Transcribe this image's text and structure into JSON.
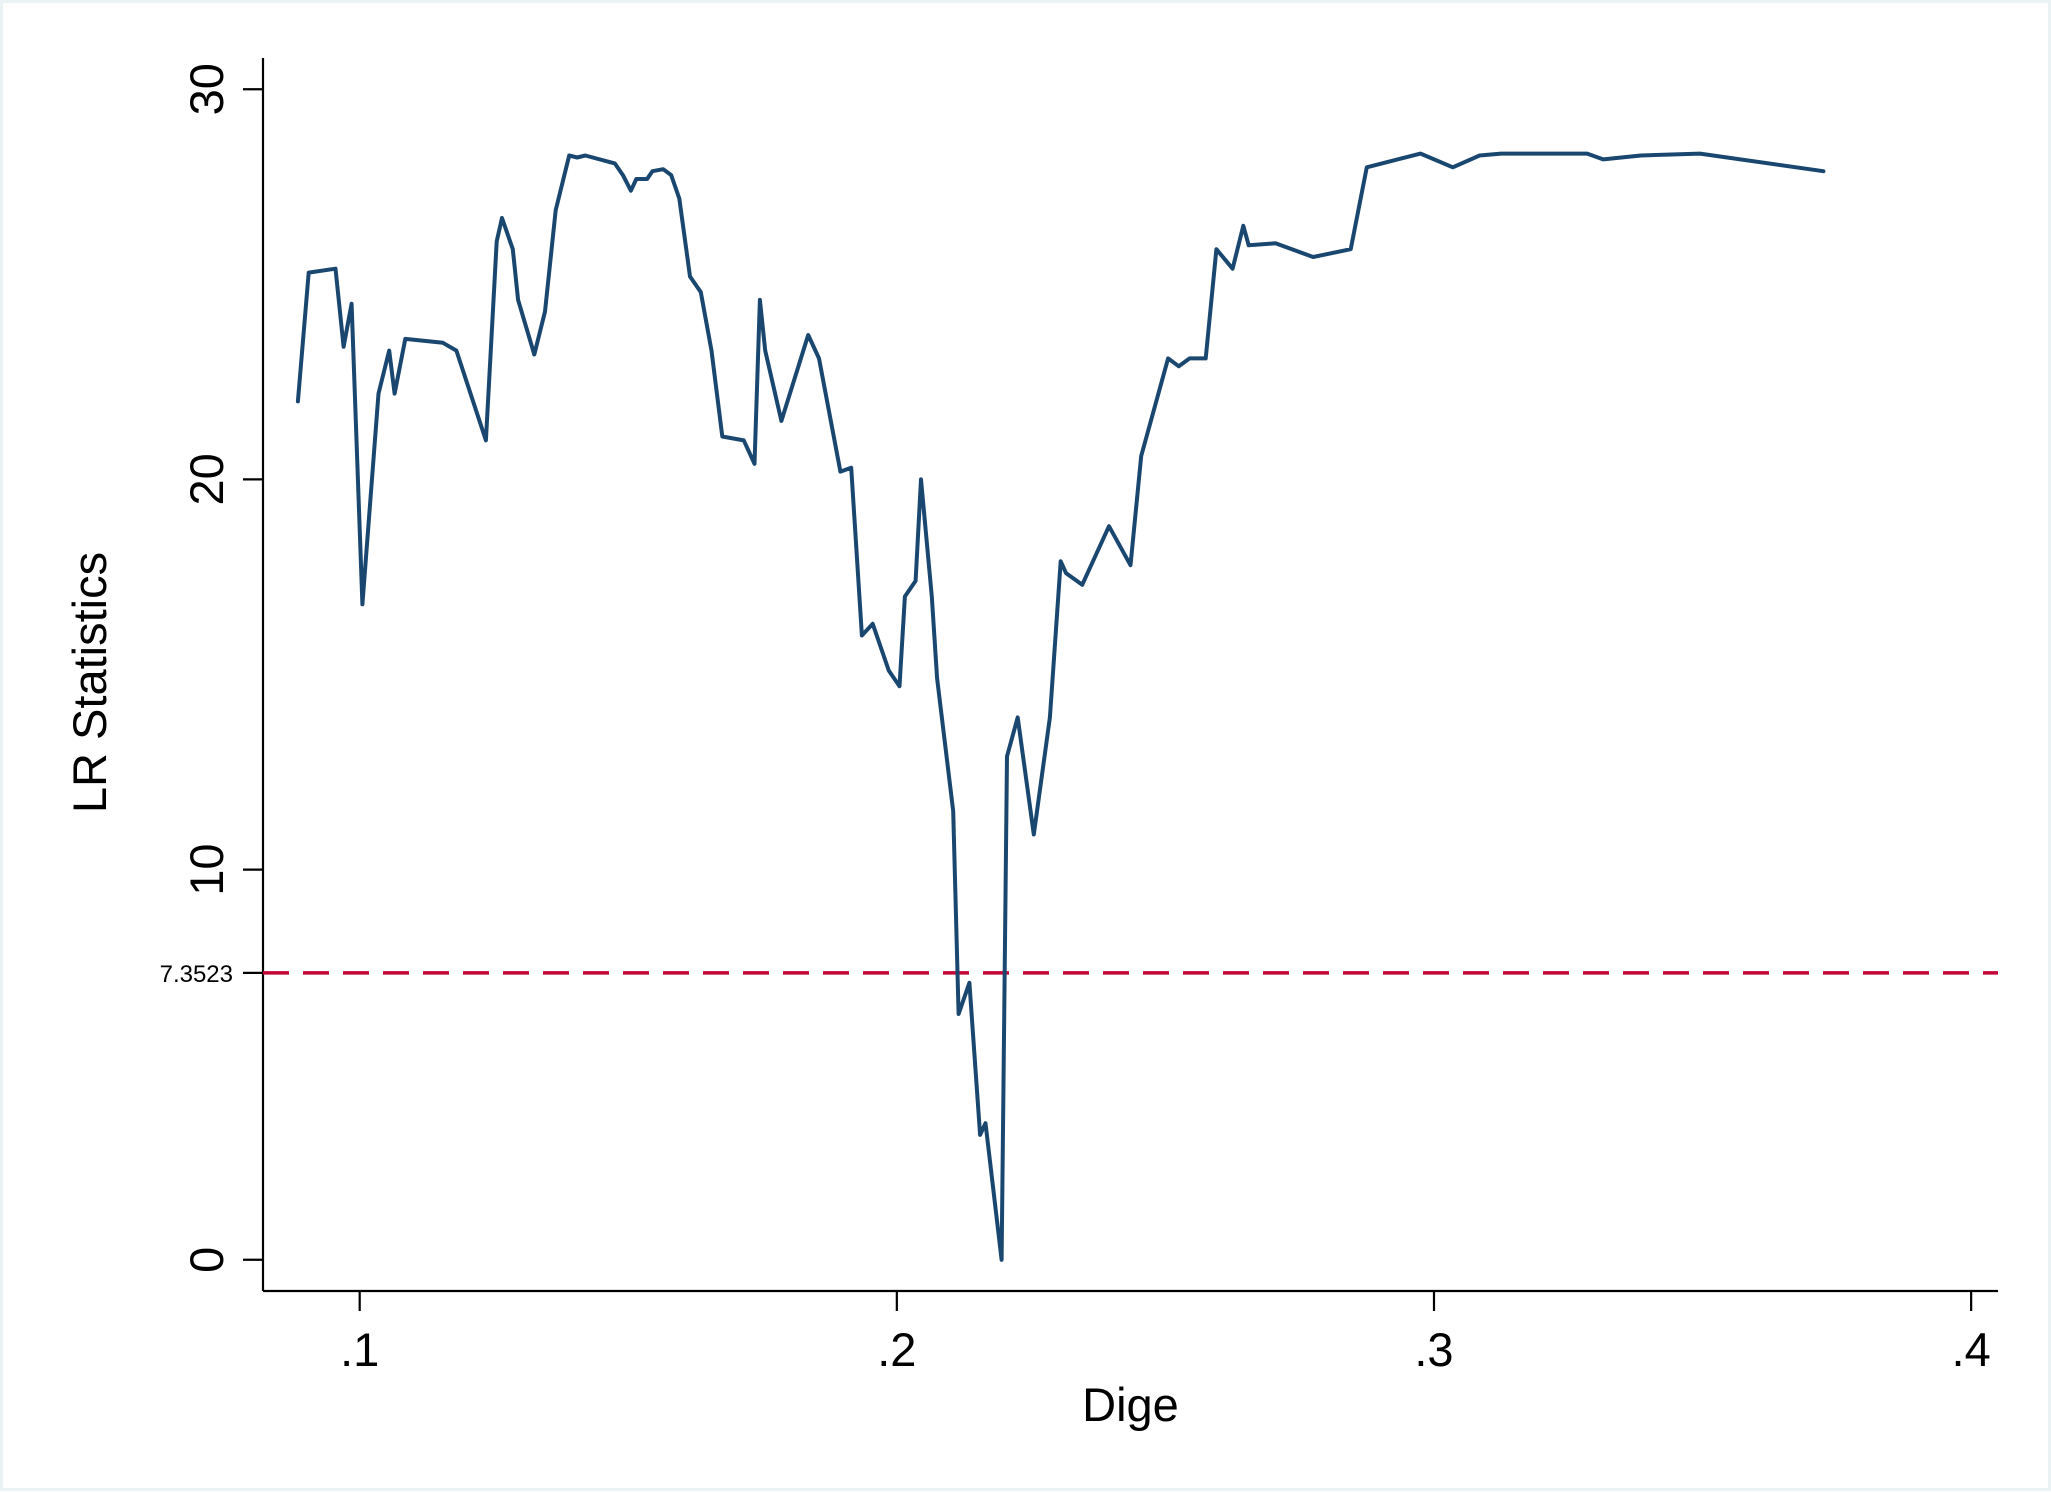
{
  "colors": {
    "series": "#1a476f",
    "reference": "#c10534",
    "axis": "#000000",
    "frame": "#eaf2f3"
  },
  "chart_data": {
    "type": "line",
    "title": "",
    "xlabel": "Dige",
    "ylabel": "LR Statistics",
    "xlim": [
      0.082,
      0.405
    ],
    "ylim": [
      -0.8,
      30.8
    ],
    "xticks": [
      0.1,
      0.2,
      0.3,
      0.4
    ],
    "xtick_labels": [
      ".1",
      ".2",
      ".3",
      ".4"
    ],
    "yticks": [
      0,
      10,
      20,
      30
    ],
    "ytick_labels": [
      "0",
      "10",
      "20",
      "30"
    ],
    "grid": false,
    "legend": "none",
    "reference_line": {
      "y": 7.3523,
      "label": "7.3523",
      "style": "dashed"
    },
    "series": [
      {
        "x": [
          0.0885,
          0.0905,
          0.0955,
          0.097,
          0.0985,
          0.1005,
          0.1035,
          0.1055,
          0.1065,
          0.1085,
          0.1155,
          0.118,
          0.1235,
          0.1255,
          0.1265,
          0.1285,
          0.1295,
          0.1325,
          0.1345,
          0.1365,
          0.139,
          0.1405,
          0.142,
          0.1475,
          0.149,
          0.1505,
          0.1515,
          0.1535,
          0.1545,
          0.1565,
          0.158,
          0.1595,
          0.1615,
          0.1635,
          0.1655,
          0.1675,
          0.1715,
          0.1735,
          0.1745,
          0.1755,
          0.1785,
          0.1835,
          0.1855,
          0.1895,
          0.1915,
          0.1935,
          0.1955,
          0.1985,
          0.2005,
          0.2015,
          0.2035,
          0.2045,
          0.2065,
          0.2075,
          0.2105,
          0.2115,
          0.2135,
          0.2155,
          0.2165,
          0.2195,
          0.2205,
          0.2225,
          0.2255,
          0.2285,
          0.2305,
          0.2315,
          0.2345,
          0.2395,
          0.2435,
          0.2455,
          0.2505,
          0.2525,
          0.2545,
          0.2575,
          0.2595,
          0.2625,
          0.2645,
          0.2655,
          0.2705,
          0.2775,
          0.2845,
          0.2875,
          0.2975,
          0.3035,
          0.3085,
          0.3125,
          0.3285,
          0.3315,
          0.3385,
          0.3495,
          0.3725
        ],
        "y": [
          22.0,
          25.3,
          25.4,
          23.4,
          24.5,
          16.8,
          22.2,
          23.3,
          22.2,
          23.6,
          23.5,
          23.3,
          21.0,
          26.1,
          26.7,
          25.9,
          24.6,
          23.2,
          24.3,
          26.9,
          28.3,
          28.25,
          28.3,
          28.1,
          27.8,
          27.4,
          27.7,
          27.7,
          27.9,
          27.95,
          27.8,
          27.2,
          25.2,
          24.8,
          23.3,
          21.1,
          21.0,
          20.4,
          24.6,
          23.3,
          21.5,
          23.7,
          23.1,
          20.2,
          20.3,
          16.0,
          16.3,
          15.1,
          14.7,
          17.0,
          17.4,
          20.0,
          17.0,
          14.9,
          11.5,
          6.3,
          7.1,
          3.2,
          3.5,
          0.0,
          12.9,
          13.9,
          10.9,
          13.9,
          17.9,
          17.6,
          17.3,
          18.8,
          17.8,
          20.6,
          23.1,
          22.9,
          23.1,
          23.1,
          25.9,
          25.4,
          26.5,
          26.0,
          26.05,
          25.7,
          25.9,
          28.0,
          28.35,
          28.0,
          28.3,
          28.35,
          28.35,
          28.2,
          28.3,
          28.35,
          27.9
        ]
      }
    ]
  }
}
